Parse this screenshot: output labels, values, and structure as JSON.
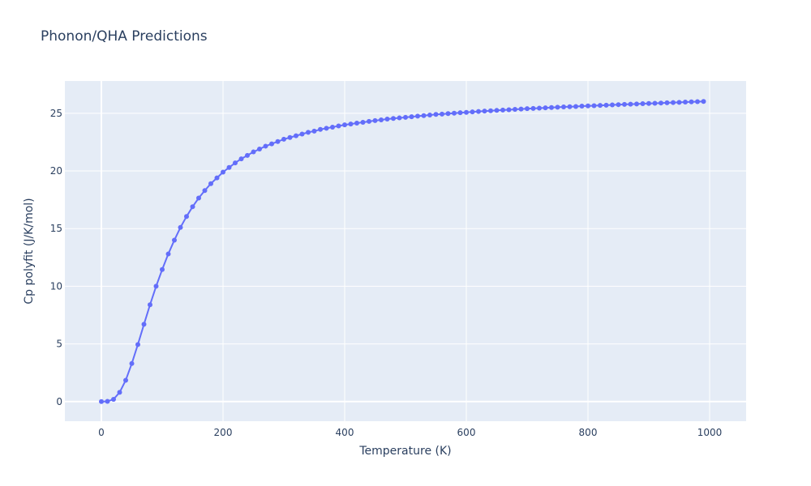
{
  "chart_data": {
    "type": "line",
    "title": "Phonon/QHA Predictions",
    "xlabel": "Temperature (K)",
    "ylabel": "Cp polyfit (J/K/mol)",
    "xlim": [
      -60,
      1060
    ],
    "ylim": [
      -1.7,
      27.8
    ],
    "x_ticks": [
      0,
      200,
      400,
      600,
      800,
      1000
    ],
    "y_ticks": [
      0,
      5,
      10,
      15,
      20,
      25
    ],
    "grid": true,
    "colors": {
      "plot_bg": "#e5ecf6",
      "grid": "#ffffff",
      "series": "#636efa",
      "text": "#2a3f5f"
    },
    "series": [
      {
        "mode": "lines+markers",
        "x": [
          0,
          10,
          20,
          30,
          40,
          50,
          60,
          70,
          80,
          90,
          100,
          110,
          120,
          130,
          140,
          150,
          160,
          170,
          180,
          190,
          200,
          210,
          220,
          230,
          240,
          250,
          260,
          270,
          280,
          290,
          300,
          310,
          320,
          330,
          340,
          350,
          360,
          370,
          380,
          390,
          400,
          410,
          420,
          430,
          440,
          450,
          460,
          470,
          480,
          490,
          500,
          510,
          520,
          530,
          540,
          550,
          560,
          570,
          580,
          590,
          600,
          610,
          620,
          630,
          640,
          650,
          660,
          670,
          680,
          690,
          700,
          710,
          720,
          730,
          740,
          750,
          760,
          770,
          780,
          790,
          800,
          810,
          820,
          830,
          840,
          850,
          860,
          870,
          880,
          890,
          900,
          910,
          920,
          930,
          940,
          950,
          960,
          970,
          980,
          990
        ],
        "y": [
          0.0,
          0.02,
          0.2,
          0.8,
          1.85,
          3.3,
          4.95,
          6.7,
          8.4,
          10.0,
          11.45,
          12.8,
          14.0,
          15.1,
          16.05,
          16.9,
          17.65,
          18.3,
          18.9,
          19.4,
          19.9,
          20.3,
          20.7,
          21.05,
          21.35,
          21.65,
          21.9,
          22.15,
          22.35,
          22.55,
          22.75,
          22.9,
          23.05,
          23.2,
          23.35,
          23.45,
          23.6,
          23.7,
          23.8,
          23.9,
          24.0,
          24.07,
          24.15,
          24.22,
          24.3,
          24.37,
          24.43,
          24.5,
          24.55,
          24.6,
          24.65,
          24.7,
          24.75,
          24.8,
          24.85,
          24.9,
          24.93,
          24.97,
          25.01,
          25.05,
          25.08,
          25.12,
          25.16,
          25.19,
          25.22,
          25.25,
          25.28,
          25.31,
          25.34,
          25.37,
          25.4,
          25.42,
          25.45,
          25.47,
          25.5,
          25.53,
          25.55,
          25.57,
          25.59,
          25.62,
          25.64,
          25.66,
          25.68,
          25.7,
          25.73,
          25.75,
          25.77,
          25.79,
          25.81,
          25.83,
          25.85,
          25.87,
          25.89,
          25.91,
          25.93,
          25.95,
          25.97,
          25.99,
          26.01,
          26.03
        ]
      }
    ]
  }
}
